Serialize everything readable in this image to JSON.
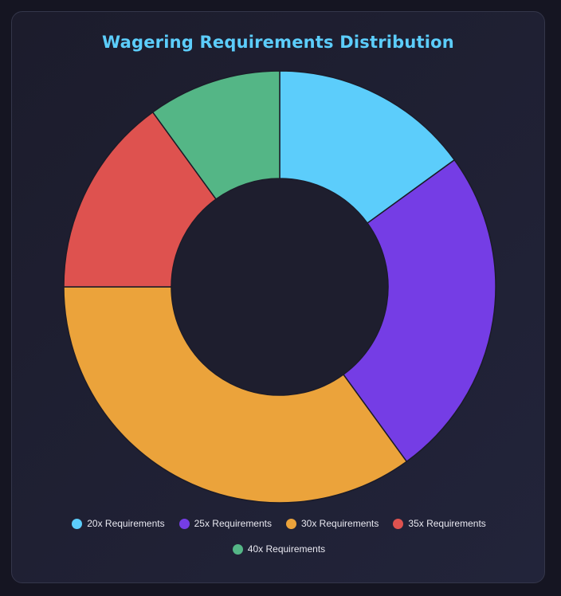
{
  "chart_data": {
    "type": "pie",
    "title": "Wagering Requirements Distribution",
    "categories": [
      "20x Requirements",
      "25x Requirements",
      "30x Requirements",
      "35x Requirements",
      "40x Requirements"
    ],
    "values": [
      15,
      25,
      35,
      15,
      10
    ],
    "colors": [
      "#5ccdfb",
      "#753de5",
      "#eba33b",
      "#de524f",
      "#54b686"
    ],
    "legend_position": "bottom",
    "donut": true
  },
  "theme": {
    "title_color": "#5ccdfb",
    "background": "#151522",
    "hole_color": "#1e1e2e"
  }
}
